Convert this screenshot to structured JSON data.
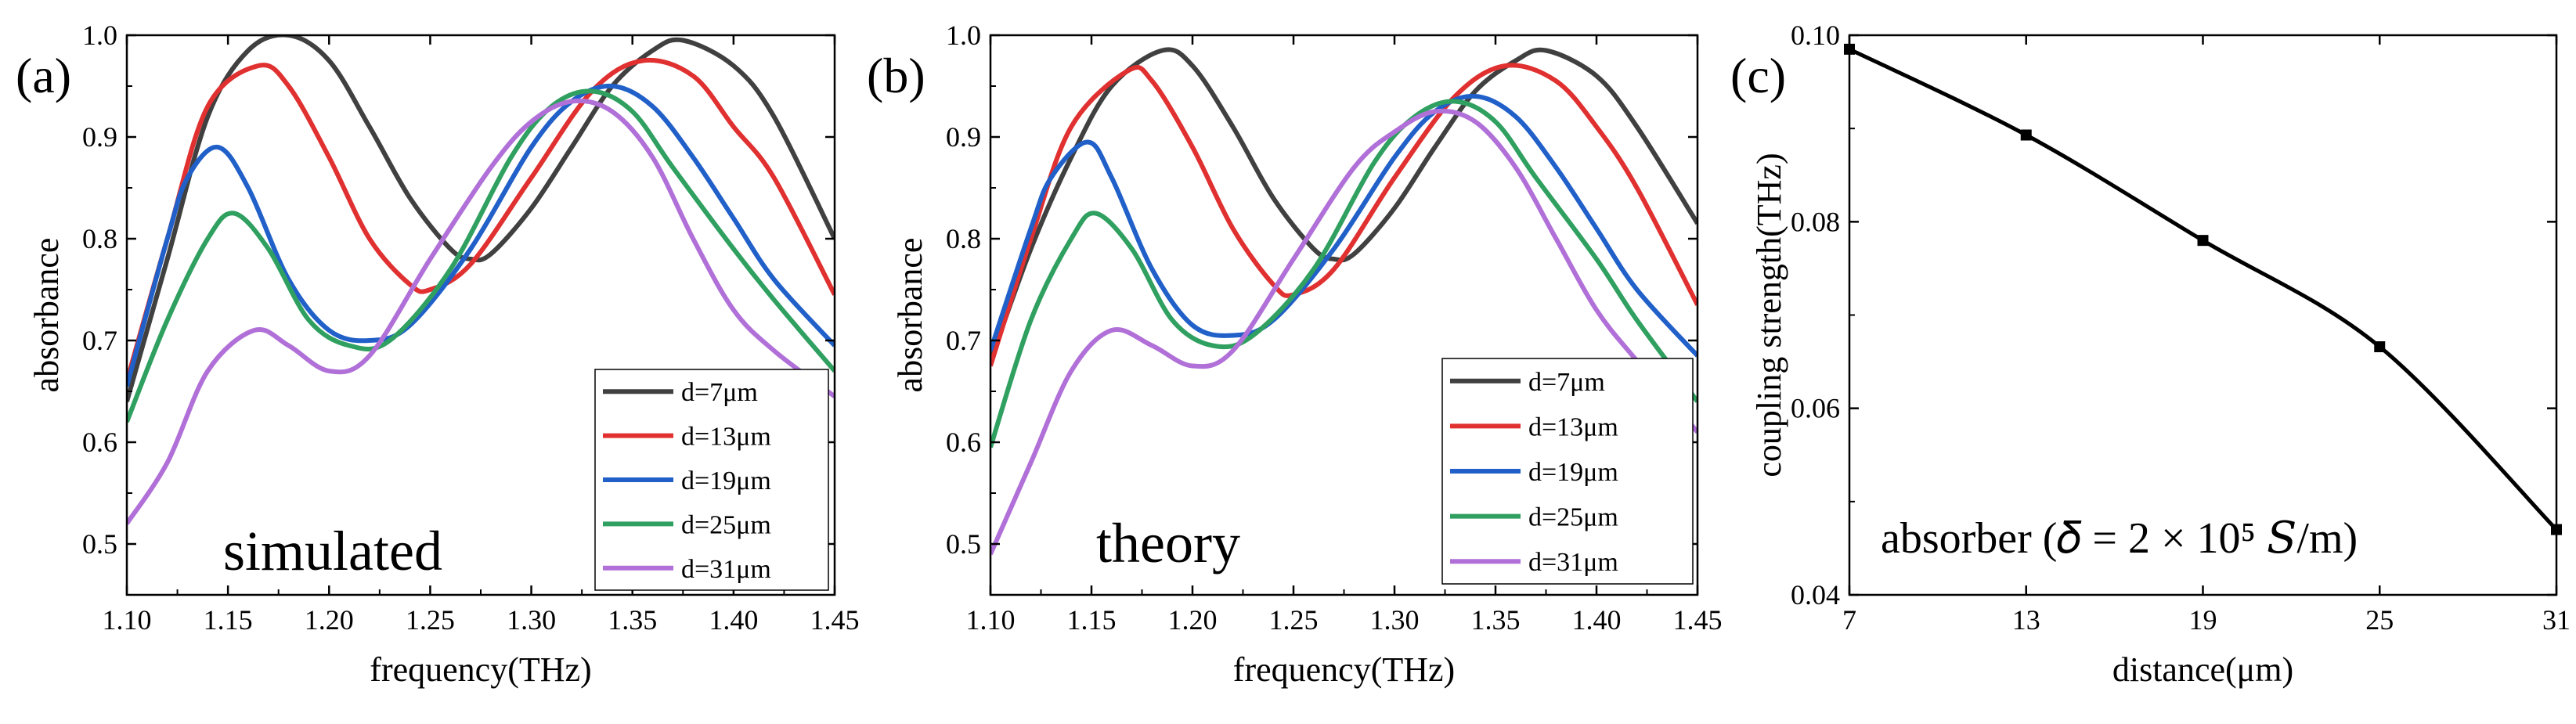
{
  "chart_data": [
    {
      "type": "line",
      "panel": "(a)",
      "annotation": "simulated",
      "xlabel": "frequency(THz)",
      "ylabel": "absorbance",
      "xlim": [
        1.1,
        1.45
      ],
      "ylim": [
        0.45,
        1.0
      ],
      "xticks": [
        "1.10",
        "1.15",
        "1.20",
        "1.25",
        "1.30",
        "1.35",
        "1.40",
        "1.45"
      ],
      "yticks": [
        "0.5",
        "0.6",
        "0.7",
        "0.8",
        "0.9",
        "1.0"
      ],
      "legend_position": "bottom-right",
      "series": [
        {
          "name": "d=7μm",
          "color": "#404040",
          "x": [
            1.1,
            1.12,
            1.14,
            1.16,
            1.18,
            1.2,
            1.22,
            1.24,
            1.26,
            1.27,
            1.28,
            1.3,
            1.32,
            1.34,
            1.36,
            1.375,
            1.4,
            1.42,
            1.45
          ],
          "y": [
            0.64,
            0.78,
            0.92,
            0.985,
            1.0,
            0.975,
            0.91,
            0.84,
            0.79,
            0.78,
            0.785,
            0.83,
            0.89,
            0.95,
            0.985,
            0.995,
            0.97,
            0.92,
            0.8
          ]
        },
        {
          "name": "d=13μm",
          "color": "#e03030",
          "x": [
            1.1,
            1.12,
            1.14,
            1.165,
            1.18,
            1.2,
            1.22,
            1.24,
            1.25,
            1.27,
            1.3,
            1.33,
            1.355,
            1.38,
            1.4,
            1.42,
            1.45
          ],
          "y": [
            0.66,
            0.8,
            0.93,
            0.97,
            0.95,
            0.88,
            0.8,
            0.755,
            0.75,
            0.775,
            0.86,
            0.945,
            0.975,
            0.96,
            0.91,
            0.86,
            0.745
          ]
        },
        {
          "name": "d=19μm",
          "color": "#2060c8",
          "x": [
            1.1,
            1.12,
            1.13,
            1.145,
            1.16,
            1.18,
            1.2,
            1.22,
            1.24,
            1.27,
            1.3,
            1.32,
            1.34,
            1.36,
            1.38,
            1.4,
            1.42,
            1.45
          ],
          "y": [
            0.655,
            0.8,
            0.86,
            0.89,
            0.85,
            0.76,
            0.71,
            0.7,
            0.715,
            0.79,
            0.89,
            0.935,
            0.95,
            0.93,
            0.88,
            0.82,
            0.76,
            0.695
          ]
        },
        {
          "name": "d=25μm",
          "color": "#30a060",
          "x": [
            1.1,
            1.12,
            1.14,
            1.153,
            1.17,
            1.19,
            1.21,
            1.23,
            1.26,
            1.29,
            1.31,
            1.33,
            1.35,
            1.37,
            1.4,
            1.42,
            1.45
          ],
          "y": [
            0.62,
            0.72,
            0.8,
            0.825,
            0.79,
            0.72,
            0.695,
            0.7,
            0.77,
            0.88,
            0.93,
            0.945,
            0.925,
            0.87,
            0.79,
            0.74,
            0.67
          ]
        },
        {
          "name": "d=31μm",
          "color": "#b070d8",
          "x": [
            1.1,
            1.12,
            1.14,
            1.163,
            1.18,
            1.2,
            1.22,
            1.25,
            1.28,
            1.3,
            1.32,
            1.34,
            1.36,
            1.38,
            1.4,
            1.42,
            1.45
          ],
          "y": [
            0.52,
            0.58,
            0.67,
            0.71,
            0.695,
            0.67,
            0.685,
            0.78,
            0.87,
            0.915,
            0.935,
            0.925,
            0.88,
            0.8,
            0.73,
            0.69,
            0.645
          ]
        }
      ]
    },
    {
      "type": "line",
      "panel": "(b)",
      "annotation": "theory",
      "xlabel": "frequency(THz)",
      "ylabel": "absorbance",
      "xlim": [
        1.1,
        1.45
      ],
      "ylim": [
        0.45,
        1.0
      ],
      "xticks": [
        "1.10",
        "1.15",
        "1.20",
        "1.25",
        "1.30",
        "1.35",
        "1.40",
        "1.45"
      ],
      "yticks": [
        "0.5",
        "0.6",
        "0.7",
        "0.8",
        "0.9",
        "1.0"
      ],
      "legend_position": "bottom-right",
      "series": [
        {
          "name": "d=7μm",
          "color": "#404040",
          "x": [
            1.1,
            1.12,
            1.14,
            1.16,
            1.185,
            1.2,
            1.22,
            1.24,
            1.26,
            1.27,
            1.28,
            1.3,
            1.32,
            1.34,
            1.36,
            1.375,
            1.4,
            1.42,
            1.45
          ],
          "y": [
            0.68,
            0.79,
            0.88,
            0.95,
            0.985,
            0.97,
            0.91,
            0.84,
            0.79,
            0.78,
            0.785,
            0.83,
            0.89,
            0.945,
            0.975,
            0.985,
            0.96,
            0.91,
            0.815
          ]
        },
        {
          "name": "d=13μm",
          "color": "#e03030",
          "x": [
            1.1,
            1.12,
            1.14,
            1.168,
            1.18,
            1.2,
            1.22,
            1.24,
            1.25,
            1.27,
            1.3,
            1.33,
            1.355,
            1.38,
            1.4,
            1.42,
            1.45
          ],
          "y": [
            0.675,
            0.8,
            0.91,
            0.965,
            0.955,
            0.89,
            0.81,
            0.755,
            0.745,
            0.77,
            0.86,
            0.94,
            0.97,
            0.955,
            0.91,
            0.85,
            0.735
          ]
        },
        {
          "name": "d=19μm",
          "color": "#2060c8",
          "x": [
            1.1,
            1.12,
            1.13,
            1.148,
            1.16,
            1.18,
            1.2,
            1.22,
            1.24,
            1.27,
            1.3,
            1.32,
            1.34,
            1.36,
            1.38,
            1.4,
            1.42,
            1.45
          ],
          "y": [
            0.69,
            0.81,
            0.86,
            0.895,
            0.86,
            0.77,
            0.715,
            0.705,
            0.72,
            0.79,
            0.88,
            0.925,
            0.94,
            0.92,
            0.87,
            0.81,
            0.75,
            0.685
          ]
        },
        {
          "name": "d=25μm",
          "color": "#30a060",
          "x": [
            1.1,
            1.12,
            1.14,
            1.152,
            1.17,
            1.19,
            1.21,
            1.23,
            1.26,
            1.29,
            1.31,
            1.33,
            1.35,
            1.37,
            1.4,
            1.42,
            1.45
          ],
          "y": [
            0.595,
            0.72,
            0.8,
            0.825,
            0.79,
            0.72,
            0.695,
            0.705,
            0.77,
            0.875,
            0.92,
            0.935,
            0.915,
            0.86,
            0.78,
            0.72,
            0.64
          ]
        },
        {
          "name": "d=31μm",
          "color": "#b070d8",
          "x": [
            1.1,
            1.12,
            1.14,
            1.16,
            1.18,
            1.2,
            1.22,
            1.25,
            1.28,
            1.3,
            1.32,
            1.34,
            1.36,
            1.38,
            1.4,
            1.42,
            1.45
          ],
          "y": [
            0.49,
            0.58,
            0.67,
            0.71,
            0.695,
            0.675,
            0.69,
            0.78,
            0.87,
            0.905,
            0.925,
            0.915,
            0.87,
            0.8,
            0.73,
            0.68,
            0.61
          ]
        }
      ]
    },
    {
      "type": "line",
      "panel": "(c)",
      "annotation": "absorber (𝛿 = 2 × 10⁵ 𝑆/m)",
      "xlabel": "distance(μm)",
      "ylabel": "coupling strength(THz)",
      "xlim": [
        7,
        31
      ],
      "ylim": [
        0.04,
        0.1
      ],
      "xticks": [
        "7",
        "13",
        "19",
        "25",
        "31"
      ],
      "yticks": [
        "0.04",
        "0.06",
        "0.08",
        "0.10"
      ],
      "series": [
        {
          "name": "coupling strength",
          "color": "#000000",
          "x": [
            7,
            13,
            19,
            25,
            31
          ],
          "y": [
            0.0985,
            0.0893,
            0.078,
            0.0666,
            0.047
          ]
        }
      ]
    }
  ]
}
